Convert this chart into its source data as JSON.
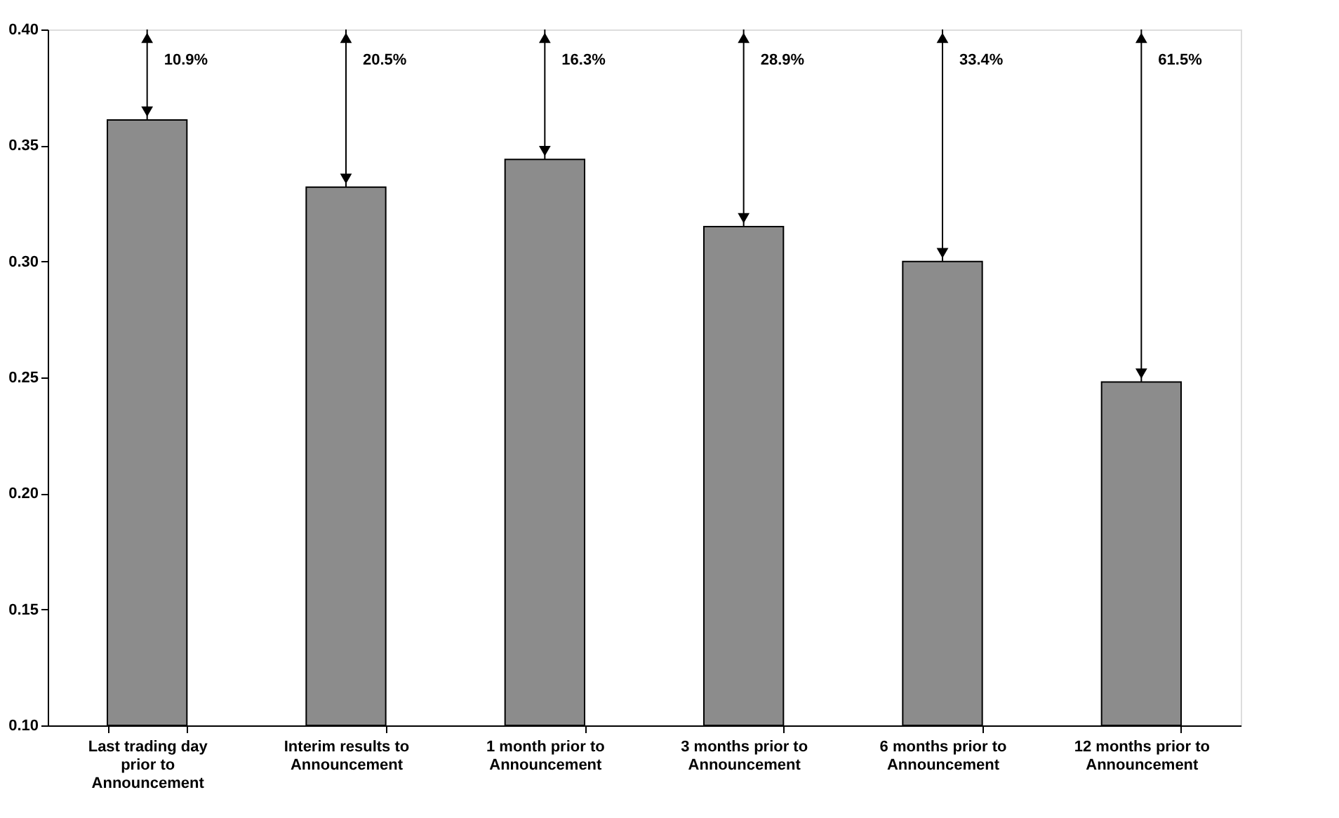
{
  "chart_data": {
    "type": "bar",
    "categories": [
      "Last trading day prior to Announcement",
      "Interim results to Announcement",
      "1 month prior to Announcement",
      "3 months prior to Announcement",
      "6 months prior to Announcement",
      "12 months prior to Announcement"
    ],
    "values": [
      0.361,
      0.332,
      0.344,
      0.315,
      0.3,
      0.248
    ],
    "color": "#8c8c8c",
    "ylim": [
      0.1,
      0.4
    ],
    "yticks": [
      {
        "value": 0.1,
        "label": "0.10"
      },
      {
        "value": 0.15,
        "label": "0.15"
      },
      {
        "value": 0.2,
        "label": "0.20"
      },
      {
        "value": 0.25,
        "label": "0.25"
      },
      {
        "value": 0.3,
        "label": "0.30"
      },
      {
        "value": 0.35,
        "label": "0.35"
      },
      {
        "value": 0.4,
        "label": "0.40"
      }
    ],
    "grid": false,
    "annotations": [
      "10.9%",
      "20.5%",
      "16.3%",
      "28.9%",
      "33.4%",
      "61.5%"
    ]
  }
}
